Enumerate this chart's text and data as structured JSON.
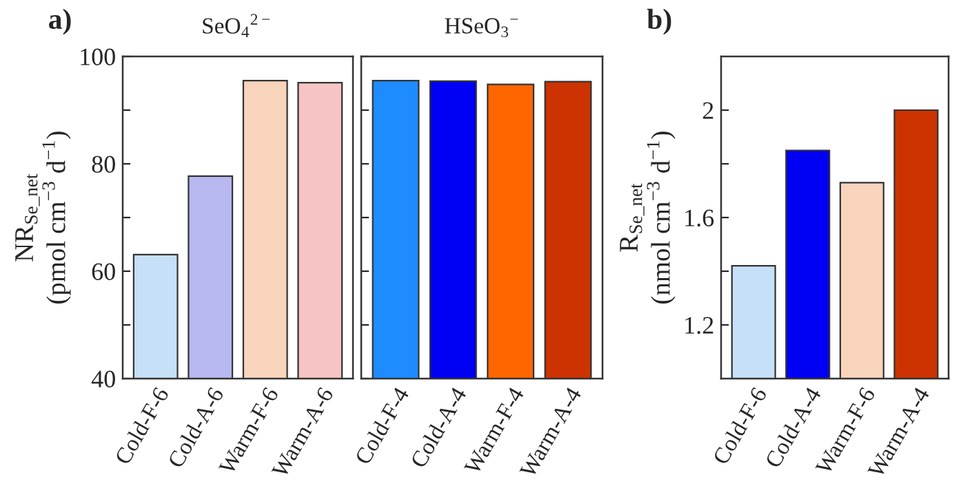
{
  "chart_data": [
    {
      "type": "bar",
      "title": "SeO$_{4}$$^{2−}$",
      "ylabel": "NR$_{Se_net}$\n(pmol cm$^{−3}$ d$^{−1}$)",
      "annotations": [
        "a)"
      ],
      "categories": [
        "Cold-F-6",
        "Cold-A-6",
        "Warm-F-6",
        "Warm-A-6"
      ],
      "series": [
        {
          "colors": [
            "#c6e0f8",
            "#b8b8f0",
            "#f8d4bc",
            "#f6c4c4"
          ],
          "values": [
            63.1,
            77.7,
            95.5,
            95.1
          ]
        }
      ],
      "ylim": [
        40,
        100
      ],
      "yticks": [
        40,
        {
          "value": 50,
          "label": null
        },
        60,
        {
          "value": 70,
          "label": null
        },
        80,
        {
          "value": 90,
          "label": null
        },
        100
      ]
    },
    {
      "type": "bar",
      "title": "HSeO$_{3}$$^{−}$",
      "tick_labels": "x",
      "categories": [
        "Cold-F-4",
        "Cold-A-4",
        "Warm-F-4",
        "Warm-A-4"
      ],
      "series": [
        {
          "colors": [
            "#1e8cff",
            "#0000f5",
            "#ff6600",
            "#cc3300"
          ],
          "values": [
            95.5,
            95.4,
            94.8,
            95.3
          ]
        }
      ],
      "ylim": [
        40,
        100
      ],
      "yticks": [
        40,
        50,
        60,
        70,
        80,
        90,
        100
      ]
    },
    {
      "type": "bar",
      "ylabel": "R$_{Se_net}$\n(nmol cm$^{−3}$ d$^{−1}$)",
      "annotations": [
        "b)"
      ],
      "categories": [
        "Cold-F-6",
        "Cold-A-4",
        "Warm-F-6",
        "Warm-A-4"
      ],
      "series": [
        {
          "colors": [
            "#c6e0f8",
            "#0000f5",
            "#f8d4bc",
            "#cc3300"
          ],
          "values": [
            1.42,
            1.85,
            1.73,
            2.0
          ]
        }
      ],
      "ylim": [
        1.0,
        2.2
      ],
      "yticks": [
        {
          "value": 1.2,
          "label": "1.2"
        },
        {
          "value": 1.4,
          "label": null
        },
        {
          "value": 1.6,
          "label": "1.6"
        },
        {
          "value": 1.8,
          "label": null
        },
        {
          "value": 2.0,
          "label": "2"
        }
      ]
    }
  ]
}
